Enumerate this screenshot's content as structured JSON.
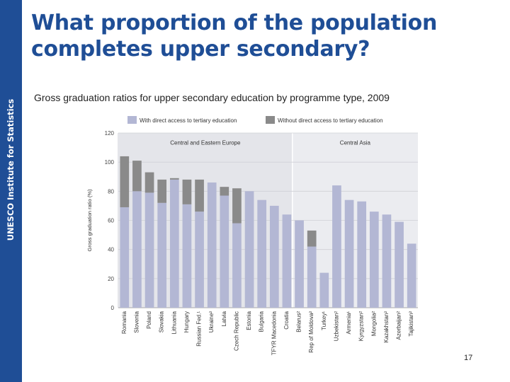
{
  "sidebar": {
    "text": "UNESCO Institute for Statistics"
  },
  "slide": {
    "title": "What proportion of the population completes upper secondary?",
    "subtitle": "Gross graduation ratios for upper secondary education by programme type, 2009",
    "page_number": "17"
  },
  "colors": {
    "sidebar": "#1f4e96",
    "title": "#1f4e96",
    "with_access": "#b3b7d4",
    "without_access": "#8a8a8a"
  },
  "chart_data": {
    "type": "bar",
    "stacked": true,
    "ylabel": "Gross graduation ratio (%)",
    "ylim": [
      0,
      120
    ],
    "yticks": [
      0,
      20,
      40,
      60,
      80,
      100,
      120
    ],
    "legend_position": "top",
    "regions": [
      {
        "label": "Central and Eastern Europe",
        "from_index": 0,
        "to_index": 13
      },
      {
        "label": "Central Asia",
        "from_index": 14,
        "to_index": 19
      }
    ],
    "categories": [
      "Romania",
      "Slovenia",
      "Poland",
      "Slovakia",
      "Lithuania",
      "Hungary",
      "Russian Fed.¹",
      "Ukraine²",
      "Latvia",
      "Czech Republic",
      "Estonia",
      "Bulgaria",
      "TFYR Macedonia",
      "Croatia",
      "Belarus²",
      "Rep of Moldova²",
      "Turkey¹",
      "Uzbekistan²",
      "Armenia¹",
      "Kyrgyzstan²",
      "Mongolia²",
      "Kazakhstan²",
      "Azerbaijan²",
      "Tajikistan²"
    ],
    "series": [
      {
        "name": "With direct access to tertiary education",
        "color": "#b3b7d4",
        "values": [
          69,
          80,
          79,
          72,
          88,
          71,
          66,
          86,
          77,
          58,
          80,
          74,
          70,
          64,
          60,
          42,
          24,
          84,
          74,
          73,
          66,
          64,
          59,
          44
        ]
      },
      {
        "name": "Without direct access to tertiary education",
        "color": "#8a8a8a",
        "values": [
          35,
          21,
          14,
          16,
          1,
          17,
          22,
          0,
          6,
          24,
          0,
          0,
          0,
          0,
          0,
          11,
          0,
          0,
          0,
          0,
          0,
          0,
          0,
          0
        ]
      }
    ]
  }
}
